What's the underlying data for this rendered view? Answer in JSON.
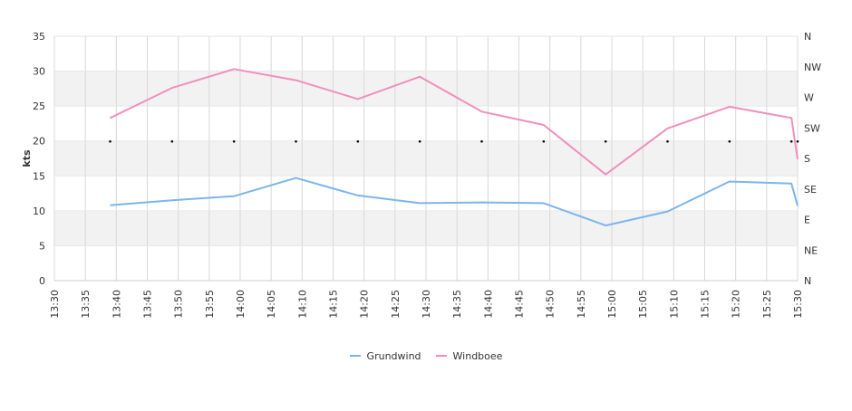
{
  "chart_data": {
    "type": "line",
    "xlabel": "",
    "ylabel": "kts",
    "x_ticks": [
      "13:30",
      "13:35",
      "13:40",
      "13:45",
      "13:50",
      "13:55",
      "14:00",
      "14:05",
      "14:10",
      "14:15",
      "14:20",
      "14:25",
      "14:30",
      "14:35",
      "14:40",
      "14:45",
      "14:50",
      "14:55",
      "15:00",
      "15:05",
      "15:10",
      "15:15",
      "15:20",
      "15:25",
      "15:30"
    ],
    "y_ticks": [
      "0",
      "5",
      "10",
      "15",
      "20",
      "25",
      "30",
      "35"
    ],
    "ylim": [
      0,
      35
    ],
    "direction_ticks": [
      "N",
      "NE",
      "E",
      "SE",
      "S",
      "SW",
      "W",
      "NW",
      "N"
    ],
    "series": [
      {
        "name": "Grundwind",
        "color": "#7cb5ec",
        "points": [
          [
            "13:39",
            10.8
          ],
          [
            "13:49",
            11.5
          ],
          [
            "13:59",
            12.1
          ],
          [
            "14:09",
            14.7
          ],
          [
            "14:19",
            12.2
          ],
          [
            "14:29",
            11.1
          ],
          [
            "14:39",
            11.2
          ],
          [
            "14:49",
            11.1
          ],
          [
            "14:59",
            7.9
          ],
          [
            "15:09",
            9.9
          ],
          [
            "15:19",
            14.2
          ],
          [
            "15:29",
            13.9
          ],
          [
            "15:30",
            10.7
          ]
        ]
      },
      {
        "name": "Windboee",
        "color": "#f08fbd",
        "points": [
          [
            "13:39",
            23.3
          ],
          [
            "13:49",
            27.6
          ],
          [
            "13:59",
            30.3
          ],
          [
            "14:09",
            28.7
          ],
          [
            "14:19",
            26.0
          ],
          [
            "14:29",
            29.2
          ],
          [
            "14:39",
            24.2
          ],
          [
            "14:49",
            22.3
          ],
          [
            "14:59",
            15.2
          ],
          [
            "15:09",
            21.8
          ],
          [
            "15:19",
            24.9
          ],
          [
            "15:29",
            23.3
          ],
          [
            "15:30",
            17.4
          ]
        ]
      }
    ],
    "direction_markers": [
      "13:39",
      "13:49",
      "13:59",
      "14:09",
      "14:19",
      "14:29",
      "14:39",
      "14:49",
      "14:59",
      "15:09",
      "15:19",
      "15:29",
      "15:30"
    ],
    "grid": true,
    "legend_position": "bottom-center"
  }
}
